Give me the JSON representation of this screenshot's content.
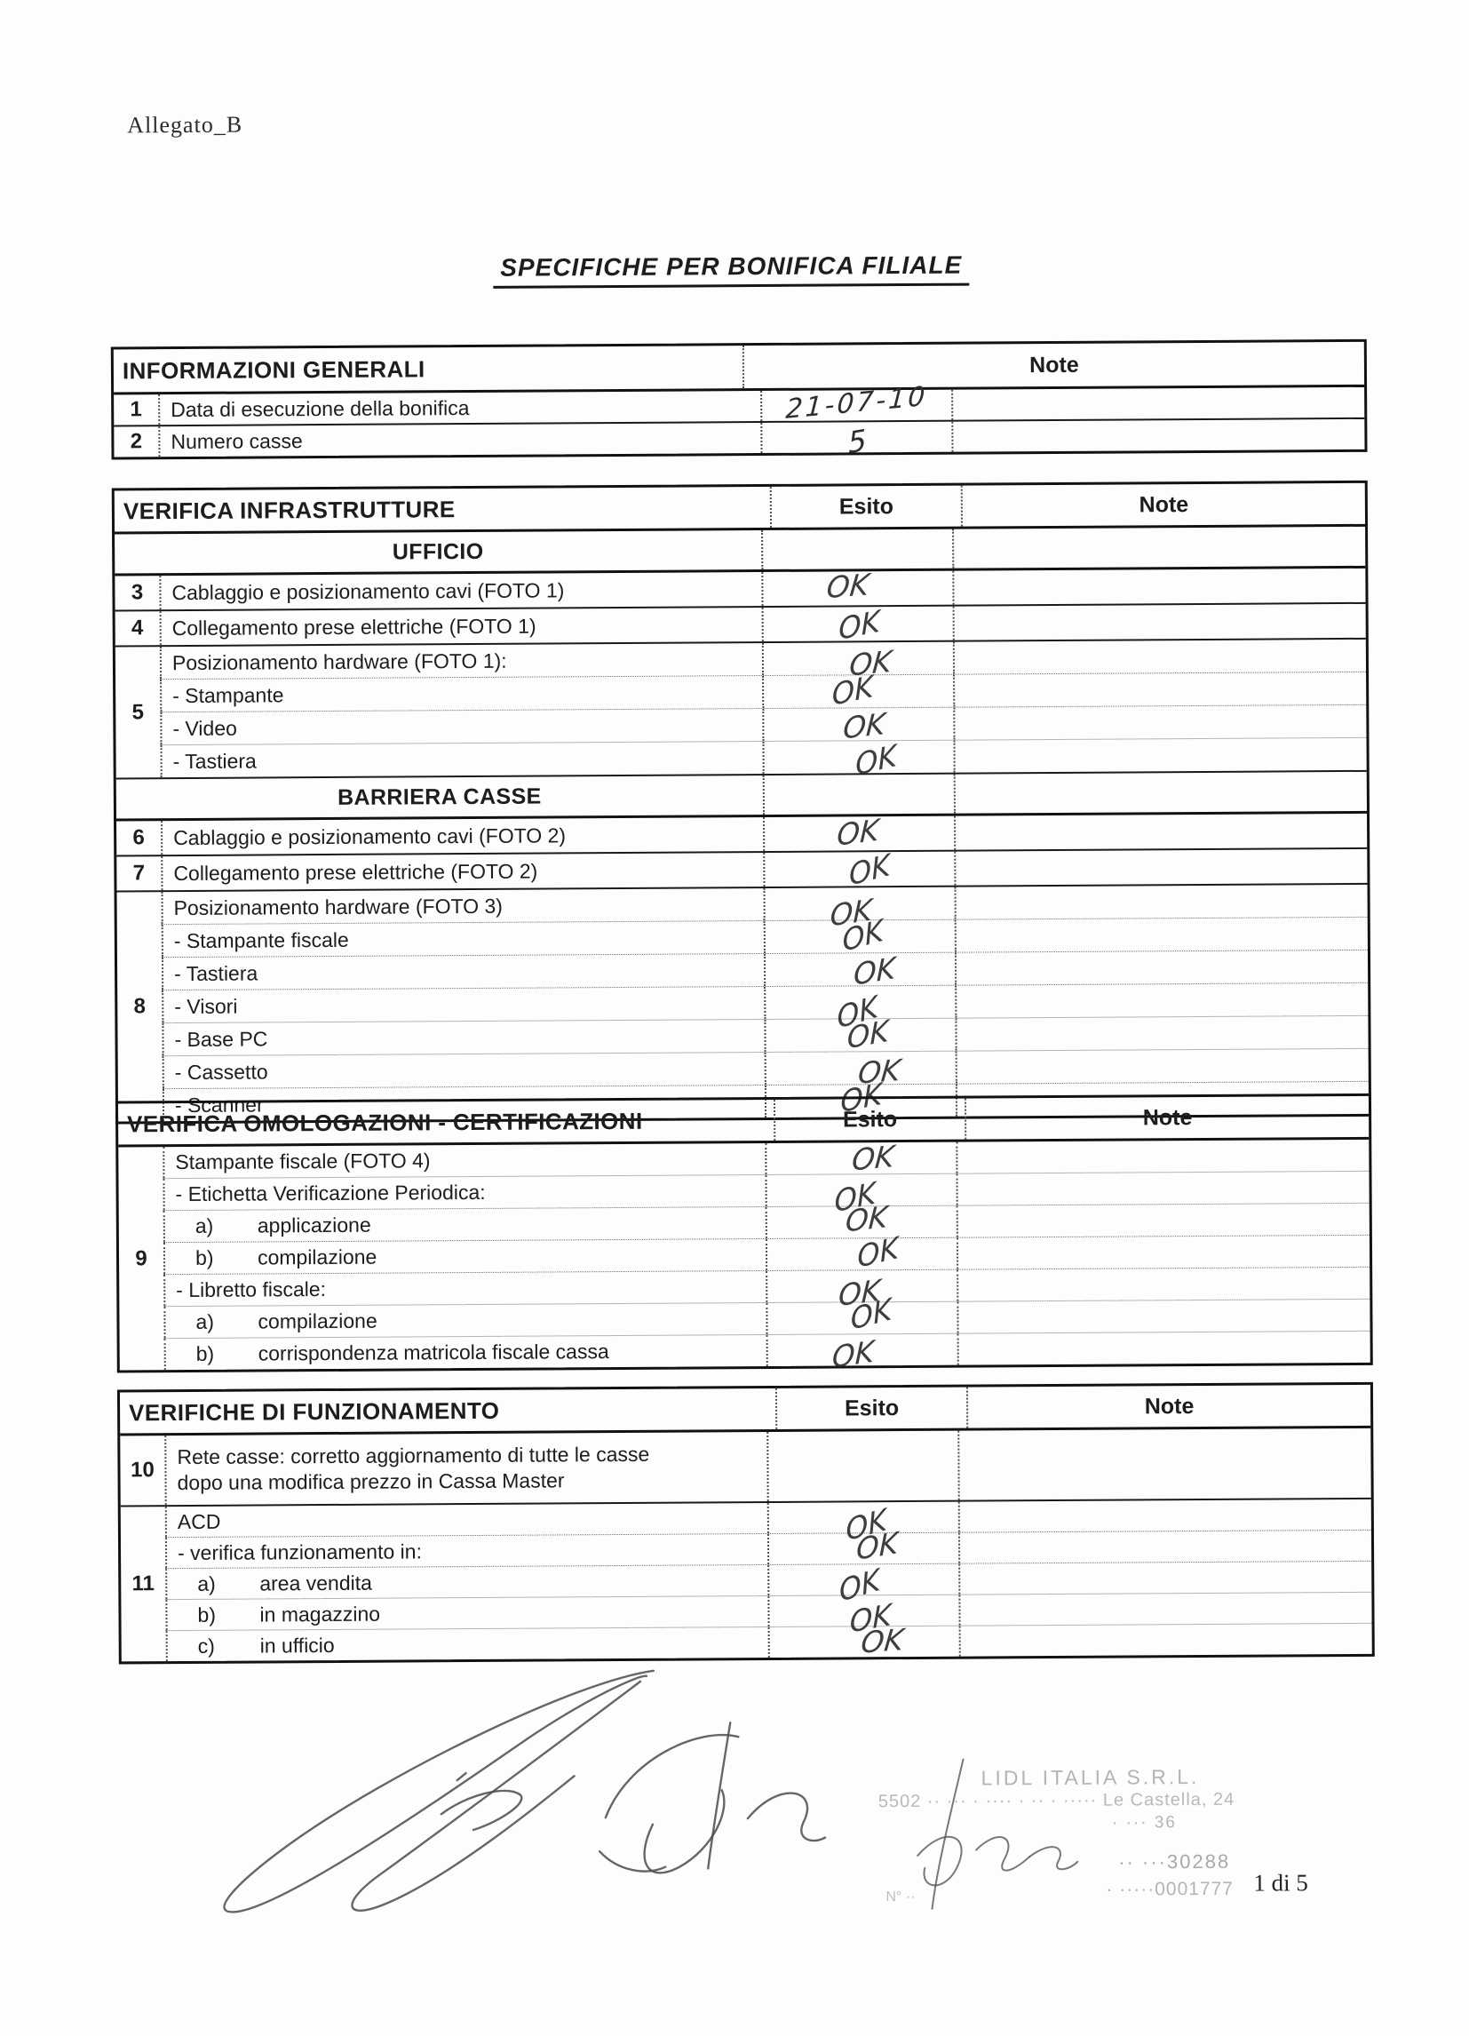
{
  "page": {
    "annex_label": "Allegato_B",
    "title": "SPECIFICHE PER BONIFICA FILIALE",
    "page_number": "1 di 5"
  },
  "tables": [
    {
      "title": "INFORMAZIONI GENERALI",
      "esito_header": "",
      "note_header": "Note",
      "blocks": [
        {
          "type": "row",
          "num": "1",
          "label": "Data di esecuzione della bonifica",
          "esito": "21-07-10",
          "note": ""
        },
        {
          "type": "row",
          "num": "2",
          "label": "Numero casse",
          "esito": "5",
          "note": ""
        }
      ]
    },
    {
      "title": "VERIFICA INFRASTRUTTURE",
      "esito_header": "Esito",
      "note_header": "Note",
      "blocks": [
        {
          "type": "subheader",
          "label": "UFFICIO"
        },
        {
          "type": "row",
          "num": "3",
          "label": "Cablaggio e posizionamento cavi (FOTO 1)",
          "esito": "OK",
          "note": ""
        },
        {
          "type": "row",
          "num": "4",
          "label": "Collegamento prese elettriche (FOTO 1)",
          "esito": "OK",
          "note": ""
        },
        {
          "type": "group",
          "num": "5",
          "items": [
            {
              "label": "Posizionamento hardware (FOTO 1):",
              "esito": "OK",
              "note": ""
            },
            {
              "label": "- Stampante",
              "esito": "OK",
              "note": ""
            },
            {
              "label": "- Video",
              "esito": "OK",
              "note": ""
            },
            {
              "label": "- Tastiera",
              "esito": "OK",
              "note": ""
            }
          ]
        },
        {
          "type": "subheader",
          "label": "BARRIERA CASSE"
        },
        {
          "type": "row",
          "num": "6",
          "label": "Cablaggio e posizionamento cavi (FOTO 2)",
          "esito": "OK",
          "note": ""
        },
        {
          "type": "row",
          "num": "7",
          "label": "Collegamento prese elettriche (FOTO 2)",
          "esito": "OK",
          "note": ""
        },
        {
          "type": "group",
          "num": "8",
          "items": [
            {
              "label": "Posizionamento hardware (FOTO 3)",
              "esito": "OK",
              "note": ""
            },
            {
              "label": "- Stampante fiscale",
              "esito": "OK",
              "note": ""
            },
            {
              "label": "- Tastiera",
              "esito": "OK",
              "note": ""
            },
            {
              "label": "- Visori",
              "esito": "OK",
              "note": ""
            },
            {
              "label": "- Base PC",
              "esito": "OK",
              "note": ""
            },
            {
              "label": "- Cassetto",
              "esito": "OK",
              "note": ""
            },
            {
              "label": "- Scanner",
              "esito": "OK",
              "note": ""
            }
          ]
        }
      ]
    },
    {
      "title": "VERIFICA OMOLOGAZIONI - CERTIFICAZIONI",
      "esito_header": "Esito",
      "note_header": "Note",
      "blocks": [
        {
          "type": "group",
          "num": "9",
          "items": [
            {
              "label": "Stampante fiscale (FOTO 4)",
              "esito": "OK",
              "note": ""
            },
            {
              "label": "- Etichetta Verificazione Periodica:",
              "esito": "OK",
              "note": ""
            },
            {
              "prefix": "a)",
              "label": "applicazione",
              "esito": "OK",
              "note": ""
            },
            {
              "prefix": "b)",
              "label": "compilazione",
              "esito": "OK",
              "note": ""
            },
            {
              "label": "- Libretto fiscale:",
              "esito": "OK",
              "note": ""
            },
            {
              "prefix": "a)",
              "label": "compilazione",
              "esito": "OK",
              "note": ""
            },
            {
              "prefix": "b)",
              "label": "corrispondenza matricola fiscale cassa",
              "esito": "OK",
              "note": ""
            }
          ]
        }
      ]
    },
    {
      "title": "VERIFICHE DI FUNZIONAMENTO",
      "esito_header": "Esito",
      "note_header": "Note",
      "blocks": [
        {
          "type": "row",
          "num": "10",
          "label": "Rete casse: corretto aggiornamento di tutte le casse dopo una modifica prezzo in Cassa Master",
          "esito": "",
          "note": "",
          "tall": true
        },
        {
          "type": "group",
          "num": "11",
          "items": [
            {
              "label": "ACD",
              "esito": "OK",
              "note": ""
            },
            {
              "label": "- verifica funzionamento in:",
              "esito": "OK",
              "note": ""
            },
            {
              "prefix": "a)",
              "label": "area vendita",
              "esito": "OK",
              "note": ""
            },
            {
              "prefix": "b)",
              "label": "in magazzino",
              "esito": "OK",
              "note": ""
            },
            {
              "prefix": "c)",
              "label": "in ufficio",
              "esito": "OK",
              "note": ""
            }
          ]
        }
      ]
    }
  ],
  "stamp": {
    "lines": [
      "LIDL ITALIA S.R.L.",
      "5502 ·· ··· · ···· · ·· · ····· Le Castella, 24",
      "· ··· 36",
      "·· ···30288",
      "· ·····0001777"
    ],
    "ref": "N° ··"
  }
}
